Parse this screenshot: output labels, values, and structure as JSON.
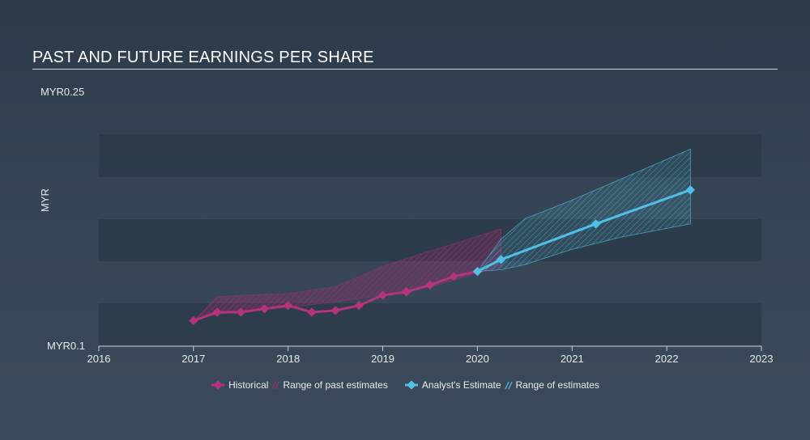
{
  "title": "PAST AND FUTURE EARNINGS PER SHARE",
  "y_top_label": "MYR0.25",
  "y_bottom_label": "MYR0.1",
  "y_unit_label": "MYR",
  "colors": {
    "historical": "#b5327c",
    "analyst": "#4fc1e6",
    "past_band": "#9b2c6e",
    "future_band": "#4fc1e6"
  },
  "legend": {
    "historical": "Historical",
    "past_range": "Range of past estimates",
    "analyst": "Analyst's Estimate",
    "future_range": "Range of estimates"
  },
  "chart_data": {
    "type": "line",
    "title": "PAST AND FUTURE EARNINGS PER SHARE",
    "ylabel": "MYR",
    "ylim": [
      0.1,
      0.25
    ],
    "xlim": [
      2016,
      2023
    ],
    "x_ticks": [
      "2016",
      "2017",
      "2018",
      "2019",
      "2020",
      "2021",
      "2022",
      "2023"
    ],
    "series": [
      {
        "name": "Historical",
        "x": [
          2017.0,
          2017.25,
          2017.5,
          2017.75,
          2018.0,
          2018.25,
          2018.5,
          2018.75,
          2019.0,
          2019.25,
          2019.5,
          2019.75,
          2020.0
        ],
        "y": [
          0.115,
          0.12,
          0.12,
          0.122,
          0.124,
          0.12,
          0.121,
          0.124,
          0.13,
          0.132,
          0.136,
          0.141,
          0.144
        ]
      },
      {
        "name": "Analyst's Estimate",
        "x": [
          2020.0,
          2020.25,
          2021.25,
          2022.25
        ],
        "y": [
          0.144,
          0.151,
          0.172,
          0.192
        ]
      },
      {
        "name": "Range of past estimates",
        "x": [
          2017.0,
          2017.25,
          2017.5,
          2018.0,
          2018.5,
          2019.0,
          2019.5,
          2020.25
        ],
        "low": [
          0.115,
          0.119,
          0.12,
          0.123,
          0.126,
          0.13,
          0.135,
          0.147
        ],
        "high": [
          0.115,
          0.129,
          0.13,
          0.131,
          0.135,
          0.147,
          0.156,
          0.169
        ]
      },
      {
        "name": "Range of estimates",
        "x": [
          2020.0,
          2020.25,
          2020.5,
          2021.0,
          2021.5,
          2022.25
        ],
        "low": [
          0.144,
          0.145,
          0.148,
          0.157,
          0.164,
          0.172
        ],
        "high": [
          0.144,
          0.163,
          0.175,
          0.186,
          0.198,
          0.216
        ]
      }
    ]
  }
}
